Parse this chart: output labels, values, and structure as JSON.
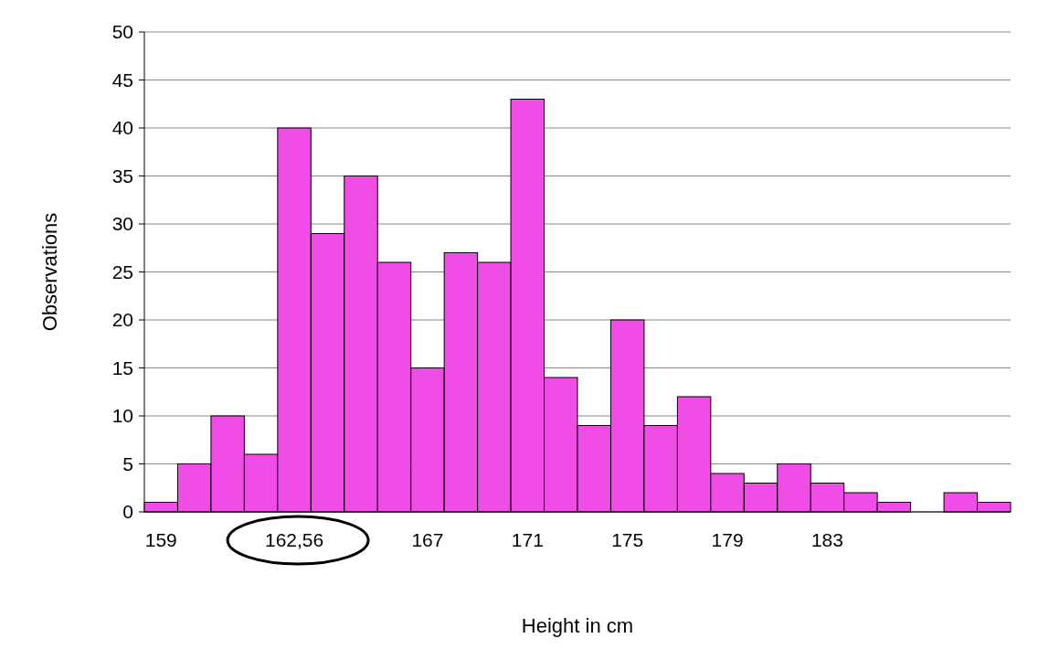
{
  "chart_data": {
    "type": "bar",
    "xlabel": "Height in cm",
    "ylabel": "Observations",
    "categories": [
      "159",
      null,
      null,
      null,
      "162,56",
      null,
      null,
      null,
      "167",
      null,
      null,
      "171",
      null,
      null,
      "175",
      null,
      null,
      "179",
      null,
      null,
      "183",
      null,
      null,
      null,
      null,
      null
    ],
    "values": [
      1,
      5,
      10,
      6,
      40,
      29,
      35,
      26,
      15,
      27,
      26,
      43,
      14,
      9,
      20,
      9,
      12,
      4,
      3,
      5,
      3,
      2,
      1,
      0,
      2,
      1
    ],
    "color": "#f04ce6",
    "ylim": [
      0,
      50
    ],
    "yticks": [
      0,
      5,
      10,
      15,
      20,
      25,
      30,
      35,
      40,
      45,
      50
    ],
    "grid": "y"
  }
}
